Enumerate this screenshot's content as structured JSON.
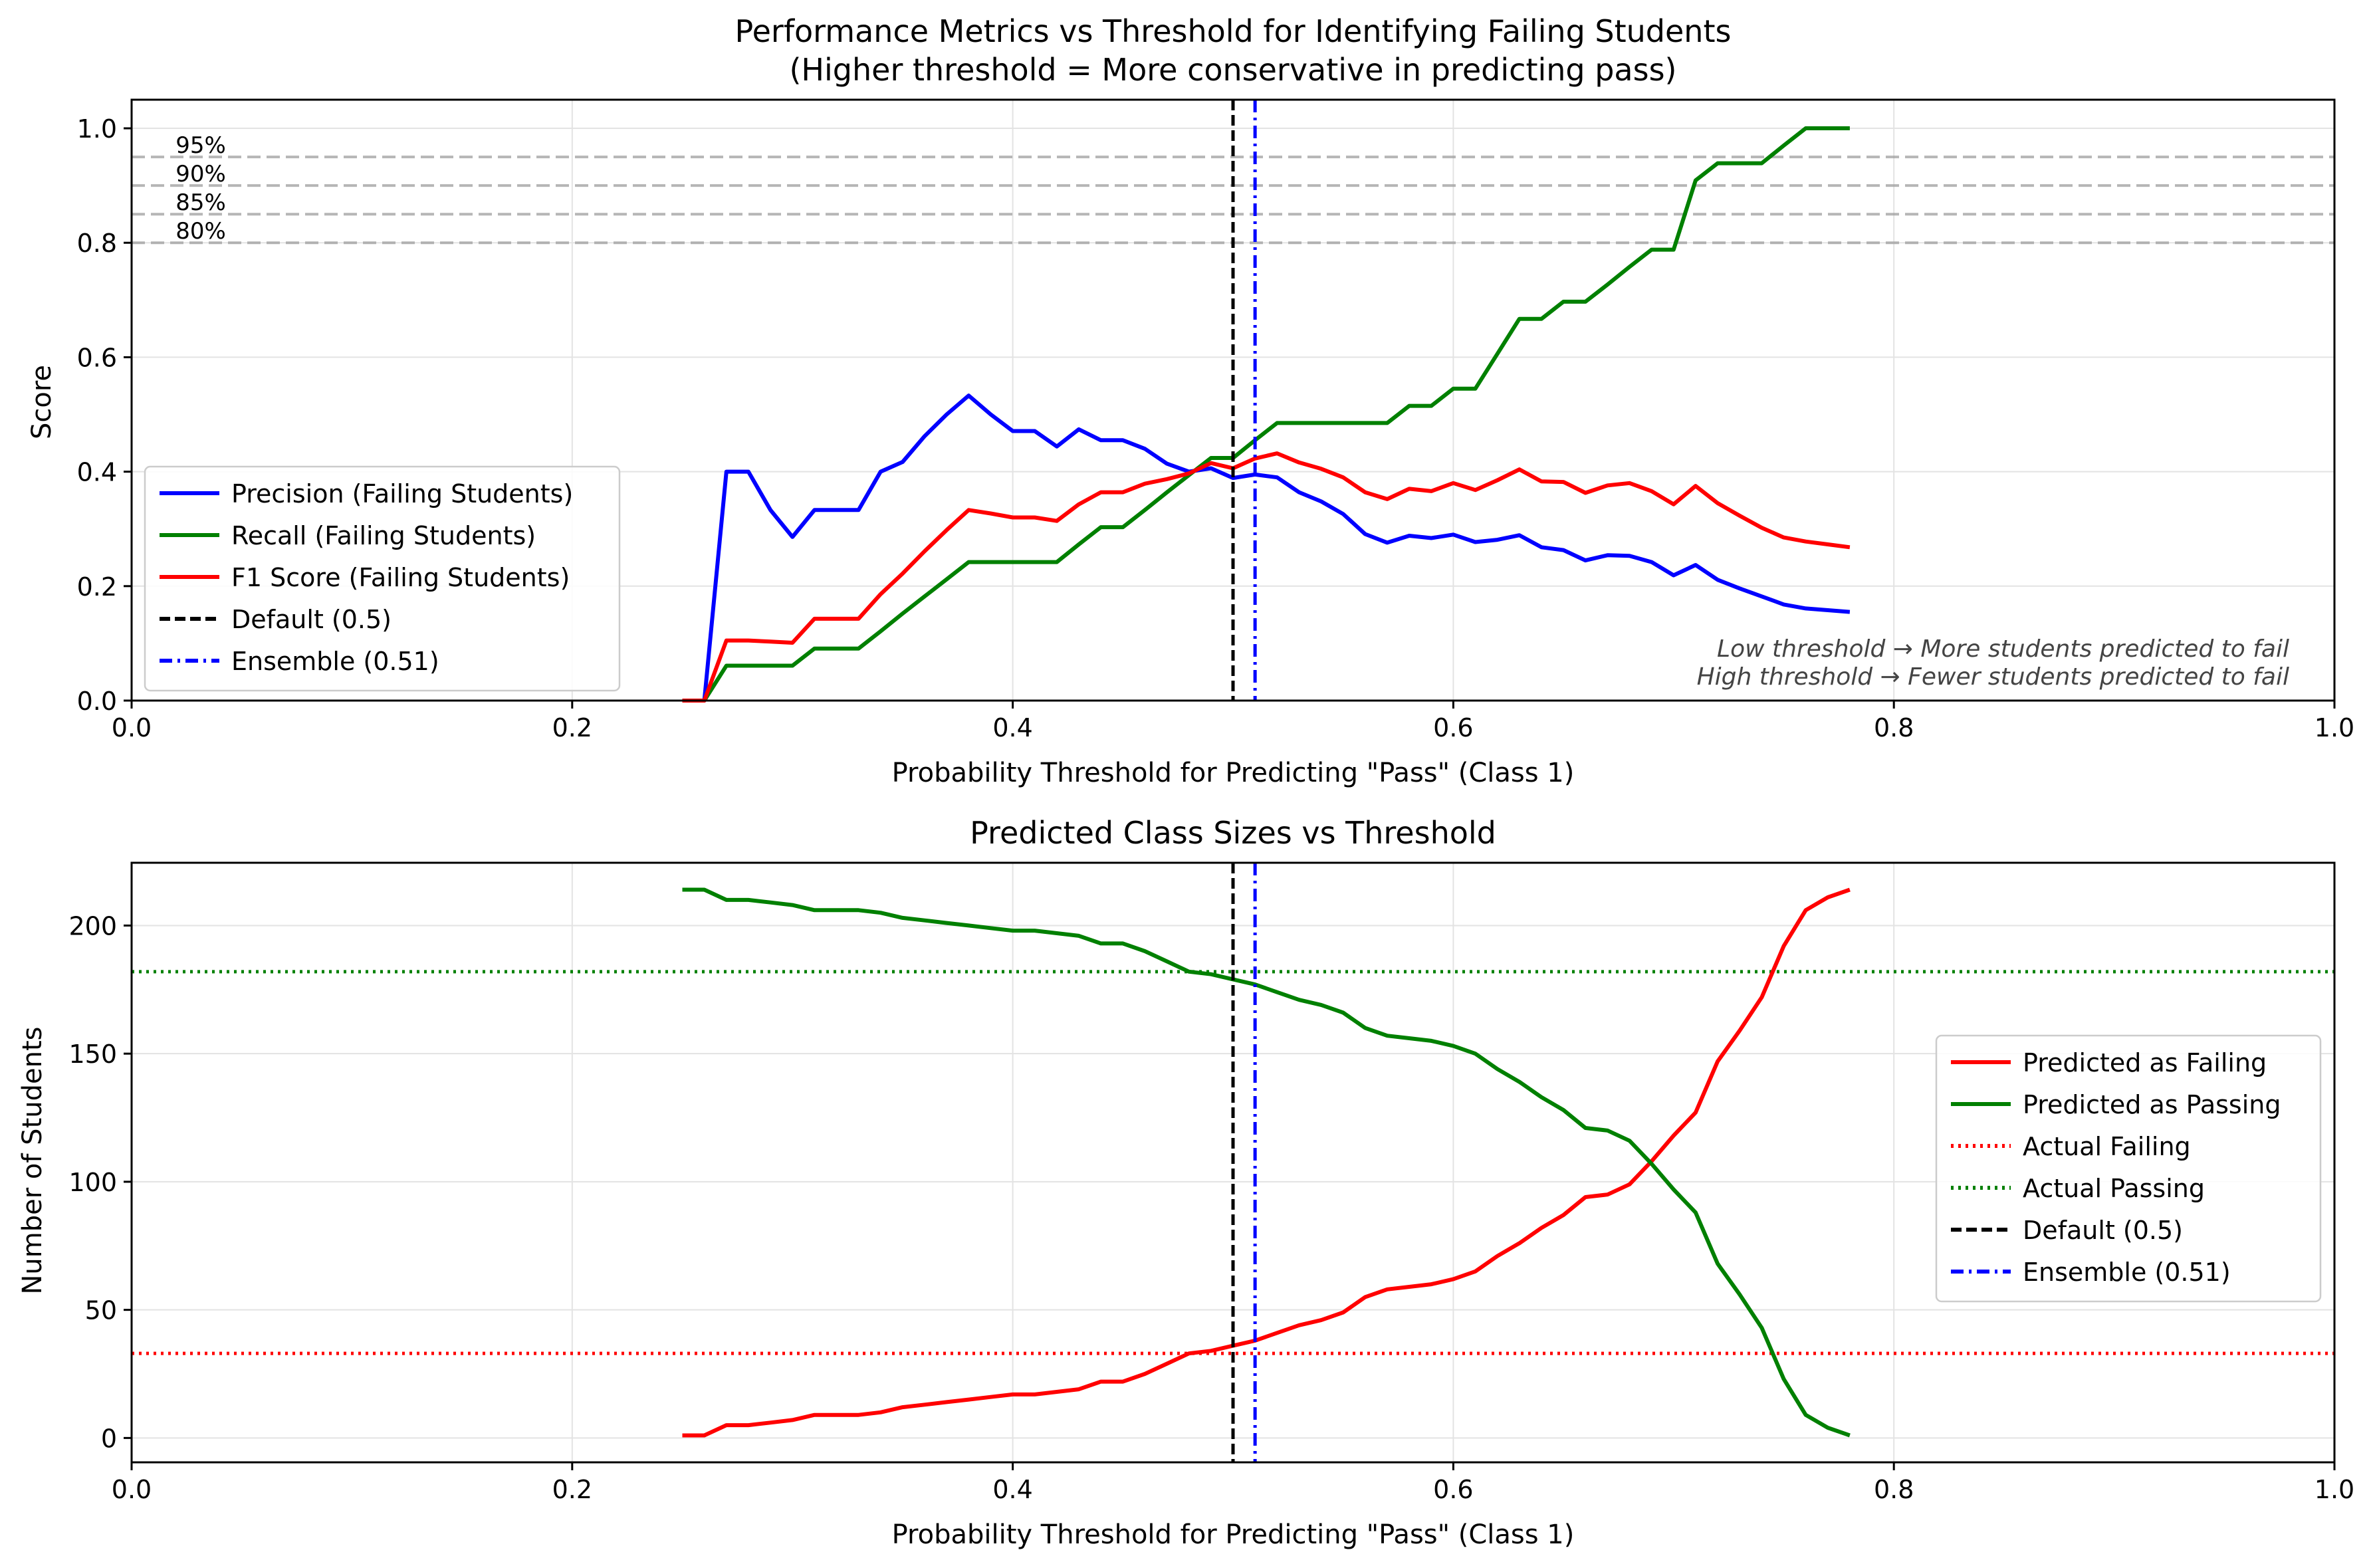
{
  "chart_data": [
    {
      "type": "line",
      "title": "Performance Metrics vs Threshold for Identifying Failing Students",
      "subtitle": "(Higher threshold = More conservative in predicting pass)",
      "xlabel": "Probability Threshold for Predicting \"Pass\" (Class 1)",
      "ylabel": "Score",
      "xlim": [
        0.0,
        1.0
      ],
      "ylim": [
        0.0,
        1.05
      ],
      "xticks": [
        0.0,
        0.2,
        0.4,
        0.6,
        0.8,
        1.0
      ],
      "xtick_labels": [
        "0.0",
        "0.2",
        "0.4",
        "0.6",
        "0.8",
        "1.0"
      ],
      "yticks": [
        0.0,
        0.2,
        0.4,
        0.6,
        0.8,
        1.0
      ],
      "ytick_labels": [
        "0.0",
        "0.2",
        "0.4",
        "0.6",
        "0.8",
        "1.0"
      ],
      "grid": true,
      "legend_position": "lower-left",
      "x": [
        0.25,
        0.26,
        0.27,
        0.28,
        0.29,
        0.3,
        0.31,
        0.32,
        0.33,
        0.34,
        0.35,
        0.36,
        0.37,
        0.38,
        0.39,
        0.4,
        0.41,
        0.42,
        0.43,
        0.44,
        0.45,
        0.46,
        0.47,
        0.48,
        0.49,
        0.5,
        0.51,
        0.52,
        0.53,
        0.54,
        0.55,
        0.56,
        0.57,
        0.58,
        0.59,
        0.6,
        0.61,
        0.62,
        0.63,
        0.64,
        0.65,
        0.66,
        0.67,
        0.68,
        0.69,
        0.7,
        0.71,
        0.72,
        0.73,
        0.74,
        0.75,
        0.76,
        0.77,
        0.78
      ],
      "series": [
        {
          "name": "Precision (Failing Students)",
          "color": "#0000ff",
          "style": "solid",
          "values": [
            0.0,
            0.0,
            0.4,
            0.4,
            0.333,
            0.286,
            0.333,
            0.333,
            0.333,
            0.4,
            0.417,
            0.462,
            0.5,
            0.533,
            0.5,
            0.471,
            0.471,
            0.444,
            0.474,
            0.455,
            0.455,
            0.44,
            0.414,
            0.4,
            0.406,
            0.389,
            0.395,
            0.39,
            0.364,
            0.348,
            0.326,
            0.291,
            0.276,
            0.288,
            0.284,
            0.29,
            0.277,
            0.281,
            0.289,
            0.268,
            0.263,
            0.245,
            0.254,
            0.253,
            0.242,
            0.219,
            0.237,
            0.211,
            0.196,
            0.182,
            0.168,
            0.161,
            0.158,
            0.155
          ]
        },
        {
          "name": "Recall (Failing Students)",
          "color": "#008000",
          "style": "solid",
          "values": [
            0.0,
            0.0,
            0.061,
            0.061,
            0.061,
            0.061,
            0.091,
            0.091,
            0.091,
            0.121,
            0.152,
            0.182,
            0.212,
            0.242,
            0.242,
            0.242,
            0.242,
            0.242,
            0.273,
            0.303,
            0.303,
            0.333,
            0.364,
            0.394,
            0.424,
            0.424,
            0.455,
            0.485,
            0.485,
            0.485,
            0.485,
            0.485,
            0.485,
            0.515,
            0.515,
            0.545,
            0.545,
            0.606,
            0.667,
            0.667,
            0.697,
            0.697,
            0.727,
            0.758,
            0.788,
            0.788,
            0.909,
            0.939,
            0.939,
            0.939,
            0.97,
            1.0,
            1.0,
            1.0
          ]
        },
        {
          "name": "F1 Score (Failing Students)",
          "color": "#ff0000",
          "style": "solid",
          "values": [
            0.0,
            0.0,
            0.105,
            0.105,
            0.103,
            0.101,
            0.143,
            0.143,
            0.143,
            0.186,
            0.222,
            0.261,
            0.298,
            0.333,
            0.327,
            0.32,
            0.32,
            0.314,
            0.343,
            0.364,
            0.364,
            0.379,
            0.387,
            0.397,
            0.415,
            0.406,
            0.423,
            0.432,
            0.416,
            0.405,
            0.39,
            0.364,
            0.352,
            0.37,
            0.366,
            0.38,
            0.368,
            0.385,
            0.404,
            0.383,
            0.382,
            0.363,
            0.376,
            0.38,
            0.366,
            0.343,
            0.375,
            0.345,
            0.323,
            0.302,
            0.285,
            0.278,
            0.273,
            0.268
          ]
        }
      ],
      "vlines": [
        {
          "name": "Default (0.5)",
          "x": 0.5,
          "color": "#000000",
          "style": "dashed"
        },
        {
          "name": "Ensemble (0.51)",
          "x": 0.51,
          "color": "#0000ff",
          "style": "dashdot"
        }
      ],
      "hlines": [
        {
          "label": "95%",
          "y": 0.95
        },
        {
          "label": "90%",
          "y": 0.9
        },
        {
          "label": "85%",
          "y": 0.85
        },
        {
          "label": "80%",
          "y": 0.8
        }
      ],
      "legend": [
        "Precision (Failing Students)",
        "Recall (Failing Students)",
        "F1 Score (Failing Students)",
        "Default (0.5)",
        "Ensemble (0.51)"
      ],
      "annotation_lines": [
        "Low threshold → More students predicted to fail",
        "High threshold → Fewer students predicted to fail"
      ]
    },
    {
      "type": "line",
      "title": "Predicted Class Sizes vs Threshold",
      "xlabel": "Probability Threshold for Predicting \"Pass\" (Class 1)",
      "ylabel": "Number of Students",
      "xlim": [
        0.0,
        1.0
      ],
      "ylim": [
        -9.5,
        224.5
      ],
      "xticks": [
        0.0,
        0.2,
        0.4,
        0.6,
        0.8,
        1.0
      ],
      "xtick_labels": [
        "0.0",
        "0.2",
        "0.4",
        "0.6",
        "0.8",
        "1.0"
      ],
      "yticks": [
        0,
        50,
        100,
        150,
        200
      ],
      "ytick_labels": [
        "0",
        "50",
        "100",
        "150",
        "200"
      ],
      "grid": true,
      "legend_position": "center-right",
      "x": [
        0.25,
        0.26,
        0.27,
        0.28,
        0.29,
        0.3,
        0.31,
        0.32,
        0.33,
        0.34,
        0.35,
        0.36,
        0.37,
        0.38,
        0.39,
        0.4,
        0.41,
        0.42,
        0.43,
        0.44,
        0.45,
        0.46,
        0.47,
        0.48,
        0.49,
        0.5,
        0.51,
        0.52,
        0.53,
        0.54,
        0.55,
        0.56,
        0.57,
        0.58,
        0.59,
        0.6,
        0.61,
        0.62,
        0.63,
        0.64,
        0.65,
        0.66,
        0.67,
        0.68,
        0.69,
        0.7,
        0.71,
        0.72,
        0.73,
        0.74,
        0.75,
        0.76,
        0.77,
        0.78
      ],
      "series": [
        {
          "name": "Predicted as Failing",
          "color": "#ff0000",
          "style": "solid",
          "values": [
            1,
            1,
            5,
            5,
            6,
            7,
            9,
            9,
            9,
            10,
            12,
            13,
            14,
            15,
            16,
            17,
            17,
            18,
            19,
            22,
            22,
            25,
            29,
            33,
            34,
            36,
            38,
            41,
            44,
            46,
            49,
            55,
            58,
            59,
            60,
            62,
            65,
            71,
            76,
            82,
            87,
            94,
            95,
            99,
            108,
            118,
            127,
            147,
            159,
            172,
            192,
            206,
            211,
            214
          ]
        },
        {
          "name": "Predicted as Passing",
          "color": "#008000",
          "style": "solid",
          "values": [
            214,
            214,
            210,
            210,
            209,
            208,
            206,
            206,
            206,
            205,
            203,
            202,
            201,
            200,
            199,
            198,
            198,
            197,
            196,
            193,
            193,
            190,
            186,
            182,
            181,
            179,
            177,
            174,
            171,
            169,
            166,
            160,
            157,
            156,
            155,
            153,
            150,
            144,
            139,
            133,
            128,
            121,
            120,
            116,
            107,
            97,
            88,
            68,
            56,
            43,
            23,
            9,
            4,
            1
          ]
        }
      ],
      "hlines": [
        {
          "name": "Actual Failing",
          "y": 33,
          "color": "#ff0000",
          "style": "dotted"
        },
        {
          "name": "Actual Passing",
          "y": 182,
          "color": "#008000",
          "style": "dotted"
        }
      ],
      "vlines": [
        {
          "name": "Default (0.5)",
          "x": 0.5,
          "color": "#000000",
          "style": "dashed"
        },
        {
          "name": "Ensemble (0.51)",
          "x": 0.51,
          "color": "#0000ff",
          "style": "dashdot"
        }
      ],
      "legend": [
        "Predicted as Failing",
        "Predicted as Passing",
        "Actual Failing",
        "Actual Passing",
        "Default (0.5)",
        "Ensemble (0.51)"
      ]
    }
  ]
}
